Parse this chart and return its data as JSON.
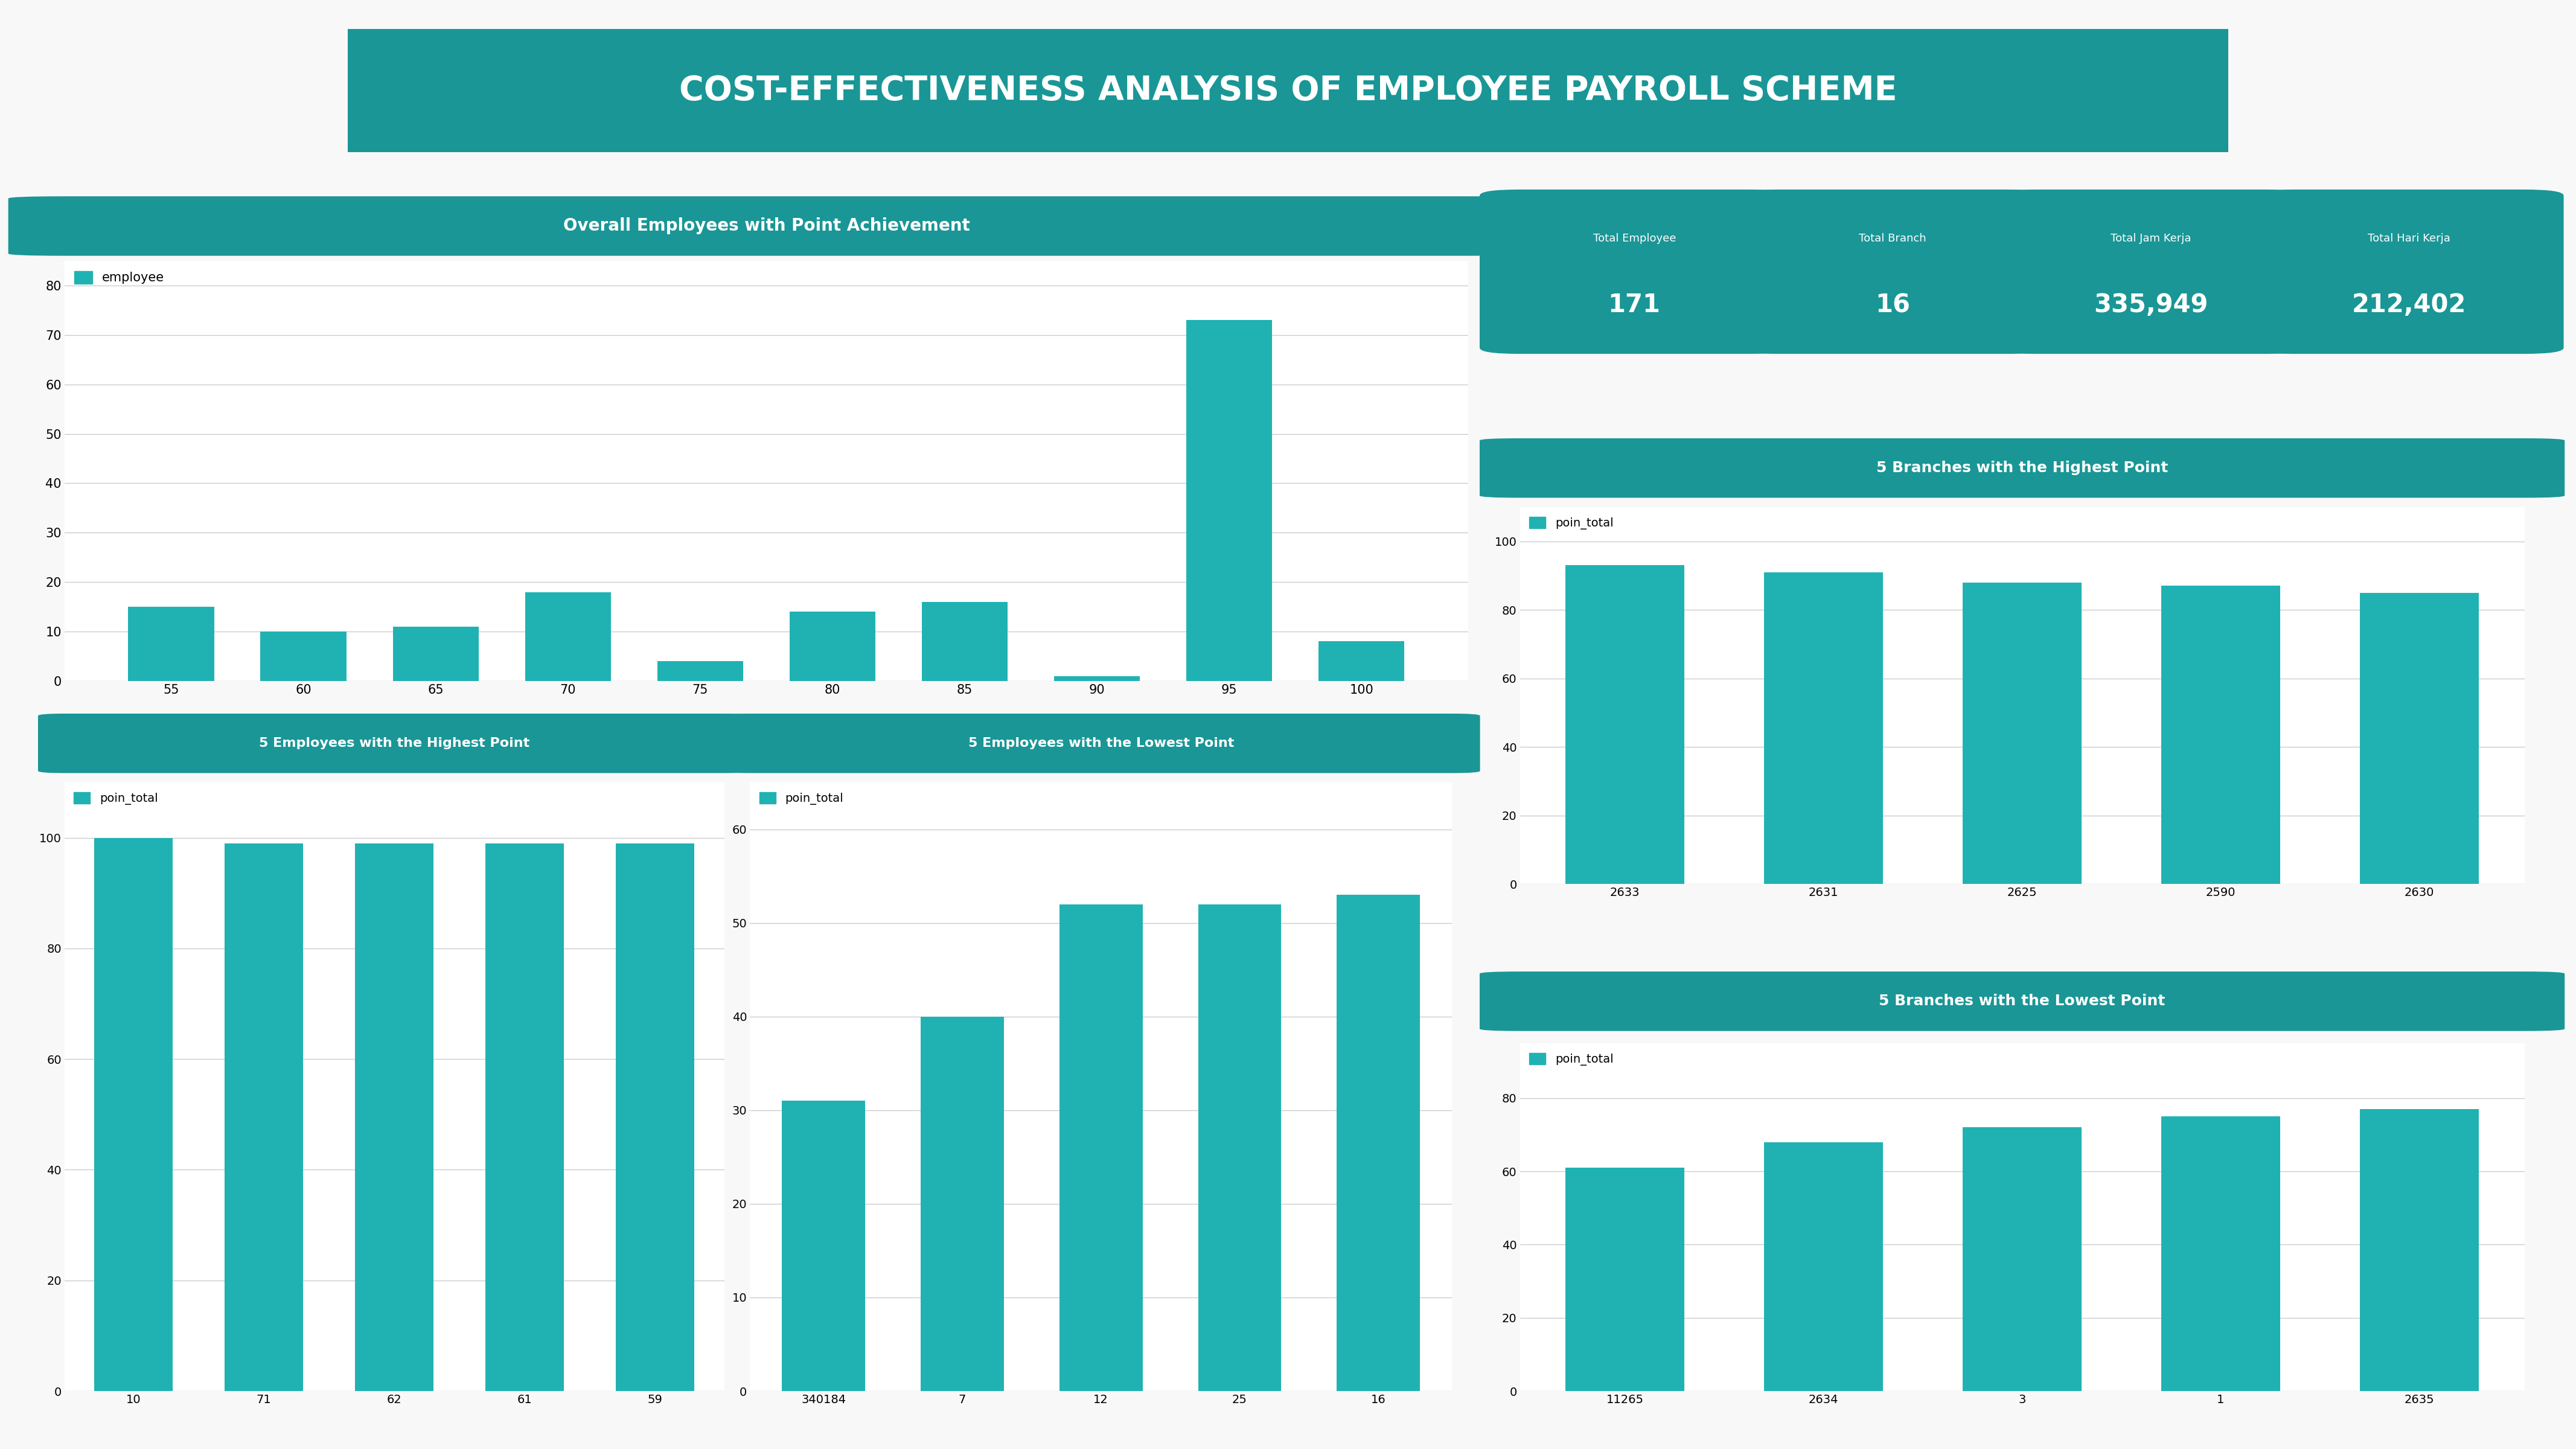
{
  "title": "COST-EFFECTIVENESS ANALYSIS OF EMPLOYEE PAYROLL SCHEME",
  "teal_color": "#1a9696",
  "bar_color": "#20b2b2",
  "bg_color": "#f8f8f8",
  "kpi_labels": [
    "Total Employee",
    "Total Branch",
    "Total Jam Kerja",
    "Total Hari Kerja"
  ],
  "kpi_values": [
    "171",
    "16",
    "335,949",
    "212,402"
  ],
  "overall_title": "Overall Employees with Point Achievement",
  "overall_x": [
    55,
    60,
    65,
    70,
    75,
    80,
    85,
    90,
    95,
    100
  ],
  "overall_y": [
    15,
    10,
    11,
    18,
    4,
    14,
    16,
    1,
    73,
    8
  ],
  "overall_legend": "employee",
  "top5emp_title": "5 Employees with the Highest Point",
  "top5emp_x": [
    "10",
    "71",
    "62",
    "61",
    "59"
  ],
  "top5emp_y": [
    100,
    99,
    99,
    99,
    99
  ],
  "top5emp_legend": "poin_total",
  "low5emp_title": "5 Employees with the Lowest Point",
  "low5emp_x": [
    "340184",
    "7",
    "12",
    "25",
    "16"
  ],
  "low5emp_y": [
    31,
    40,
    52,
    52,
    53
  ],
  "low5emp_legend": "poin_total",
  "top5branch_title": "5 Branches with the Highest Point",
  "top5branch_x": [
    "2633",
    "2631",
    "2625",
    "2590",
    "2630"
  ],
  "top5branch_y": [
    93,
    91,
    88,
    87,
    85
  ],
  "top5branch_legend": "poin_total",
  "low5branch_title": "5 Branches with the Lowest Point",
  "low5branch_x": [
    "11265",
    "2634",
    "3",
    "1",
    "2635"
  ],
  "low5branch_y": [
    61,
    68,
    72,
    75,
    77
  ],
  "low5branch_legend": "poin_total"
}
